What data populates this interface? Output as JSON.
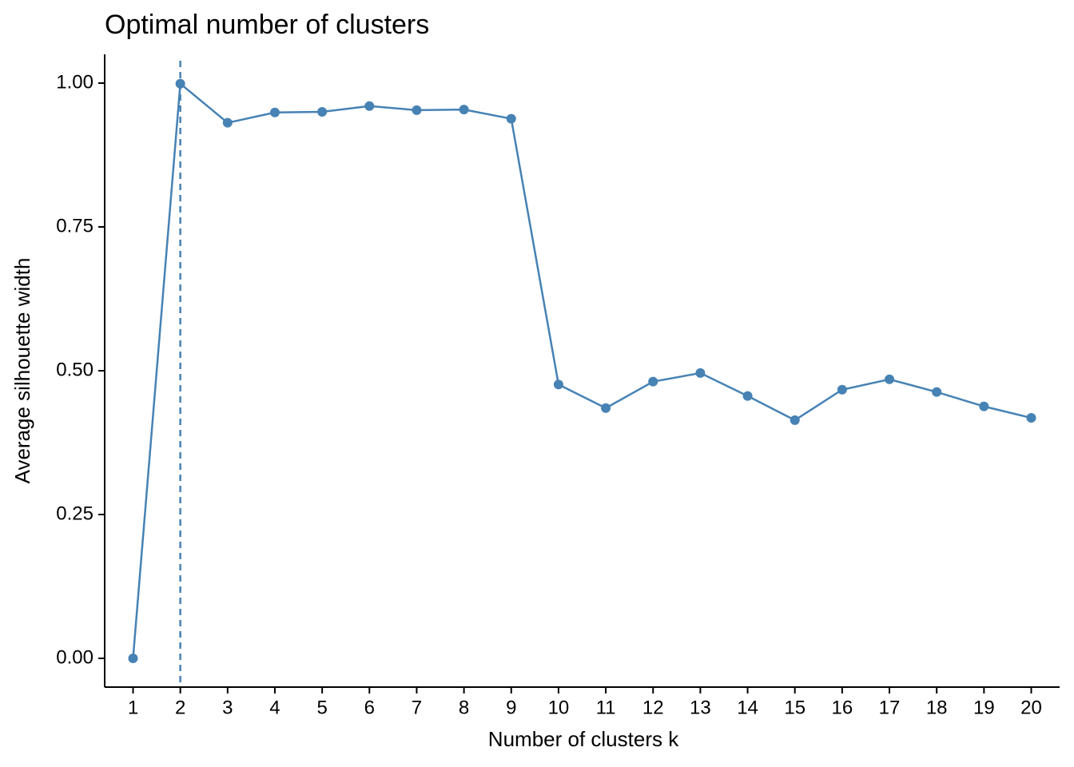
{
  "chart_data": {
    "type": "line",
    "title": "Optimal number of clusters",
    "x_label": "Number of clusters k",
    "y_label": "Average silhouette width",
    "x": [
      1,
      2,
      3,
      4,
      5,
      6,
      7,
      8,
      9,
      10,
      11,
      12,
      13,
      14,
      15,
      16,
      17,
      18,
      19,
      20
    ],
    "series": [
      {
        "color": "#4682b4",
        "values": [
          0,
          0.999,
          0.931,
          0.949,
          0.95,
          0.96,
          0.953,
          0.954,
          0.938,
          0.476,
          0.435,
          0.481,
          0.496,
          0.456,
          0.414,
          0.467,
          0.485,
          0.463,
          0.438,
          0.418
        ]
      }
    ],
    "vline": 2,
    "xlim": [
      0.4,
      20.6
    ],
    "xticks": [
      1,
      2,
      3,
      4,
      5,
      6,
      7,
      8,
      9,
      10,
      11,
      12,
      13,
      14,
      15,
      16,
      17,
      18,
      19,
      20
    ],
    "ylim": [
      -0.05,
      1.05
    ],
    "yticks": [
      {
        "value": 0,
        "label": "0.00"
      },
      {
        "value": 0.25,
        "label": "0.25"
      },
      {
        "value": 0.5,
        "label": "0.50"
      },
      {
        "value": 0.75,
        "label": "0.75"
      },
      {
        "value": 1,
        "label": "1.00"
      }
    ],
    "grid": false
  }
}
